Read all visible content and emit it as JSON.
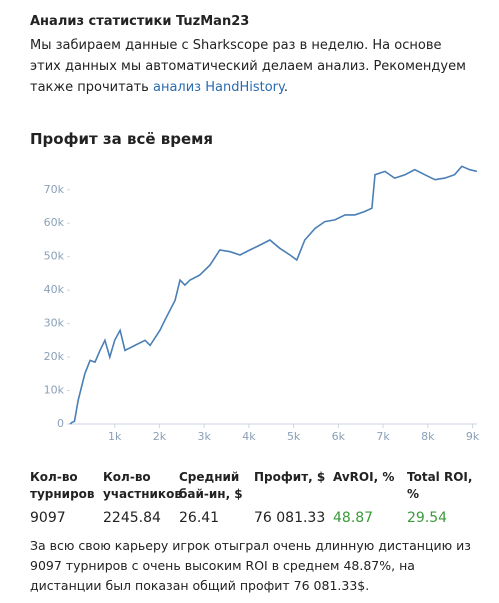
{
  "header": {
    "title": "Анализ статистики TuzMan23",
    "intro_before": "Мы забираем данные с Sharkscope раз в неделю. На основе этих данных мы автоматический делаем анализ. Рекомендуем также прочитать ",
    "intro_link": "анализ HandHistory",
    "intro_after": "."
  },
  "section_title": "Профит за всё время",
  "chart_data": {
    "type": "line",
    "x": [
      0,
      50,
      100,
      180,
      330,
      450,
      560,
      670,
      780,
      890,
      1000,
      1120,
      1230,
      1450,
      1680,
      1790,
      2010,
      2120,
      2350,
      2460,
      2570,
      2680,
      2900,
      3130,
      3350,
      3580,
      3800,
      4020,
      4250,
      4470,
      4690,
      4920,
      5070,
      5250,
      5480,
      5700,
      5920,
      6150,
      6370,
      6590,
      6750,
      6820,
      7040,
      7260,
      7490,
      7710,
      7930,
      8160,
      8380,
      8600,
      8760,
      8940,
      9097
    ],
    "values": [
      0,
      500,
      800,
      7000,
      15000,
      19000,
      18500,
      22000,
      25000,
      20000,
      25000,
      28000,
      22000,
      23500,
      25000,
      23500,
      28000,
      31000,
      37000,
      43000,
      41500,
      43000,
      44500,
      47500,
      52000,
      51500,
      50500,
      52000,
      53500,
      55000,
      52500,
      50500,
      49000,
      55000,
      58500,
      60500,
      61000,
      62500,
      62500,
      63500,
      64500,
      74500,
      75500,
      73500,
      74500,
      76000,
      74500,
      73000,
      73500,
      74500,
      77000,
      76000,
      75500
    ],
    "color": "#4a7fb5",
    "xlim": [
      0,
      9100
    ],
    "ylim": [
      0,
      78000
    ],
    "xticks": [
      {
        "value": 1000,
        "label": "1k"
      },
      {
        "value": 2000,
        "label": "2k"
      },
      {
        "value": 3000,
        "label": "3k"
      },
      {
        "value": 4000,
        "label": "4k"
      },
      {
        "value": 5000,
        "label": "5k"
      },
      {
        "value": 6000,
        "label": "6k"
      },
      {
        "value": 7000,
        "label": "7k"
      },
      {
        "value": 8000,
        "label": "8k"
      },
      {
        "value": 9000,
        "label": "9k"
      }
    ],
    "yticks": [
      0,
      {
        "value": 10000,
        "label": "10k"
      },
      {
        "value": 20000,
        "label": "20k"
      },
      {
        "value": 30000,
        "label": "30k"
      },
      {
        "value": 40000,
        "label": "40k"
      },
      {
        "value": 50000,
        "label": "50k"
      },
      {
        "value": 60000,
        "label": "60k"
      },
      {
        "value": 70000,
        "label": "70k"
      }
    ]
  },
  "stats": [
    {
      "label": "Кол-во турниров",
      "value": "9097"
    },
    {
      "label": "Кол-во участников",
      "value": "2245.84"
    },
    {
      "label": "Средний бай-ин, $",
      "value": "26.41"
    },
    {
      "label": "Профит, $",
      "value": "76 081.33"
    },
    {
      "label": "AvROI, %",
      "value": "48.87"
    },
    {
      "label": "Total ROI, %",
      "value": "29.54"
    }
  ],
  "summary": "За всю свою карьеру игрок отыграл очень длинную дистанцию из 9097 турниров с очень высоким ROI в среднем 48.87%, на дистанции был показан общий профит 76 081.33$."
}
